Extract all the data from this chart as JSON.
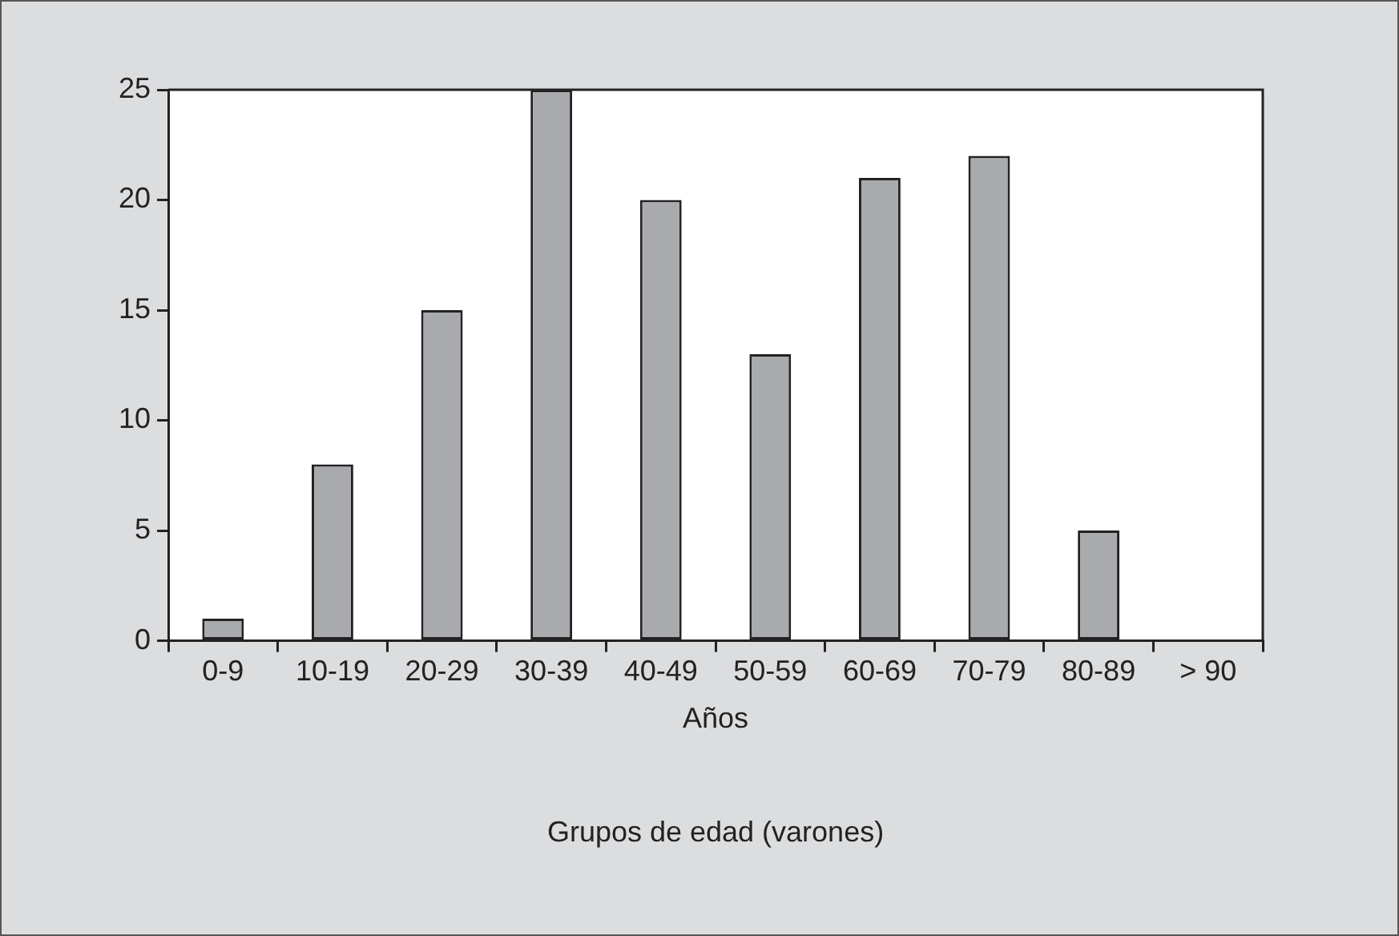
{
  "chart_data": {
    "type": "bar",
    "xlabel": "Años",
    "categories": [
      "0-9",
      "10-19",
      "20-29",
      "30-39",
      "40-49",
      "50-59",
      "60-69",
      "70-79",
      "80-89",
      "> 90"
    ],
    "values": [
      1,
      8,
      15,
      25,
      20,
      13,
      21,
      22,
      5,
      0
    ],
    "color": "#a9aaad",
    "ylim": [
      0,
      25
    ],
    "yticks": [
      0,
      5,
      10,
      15,
      20,
      25
    ],
    "grid": false,
    "legend": false,
    "annotations": [
      "Grupos de edad (varones)"
    ]
  }
}
